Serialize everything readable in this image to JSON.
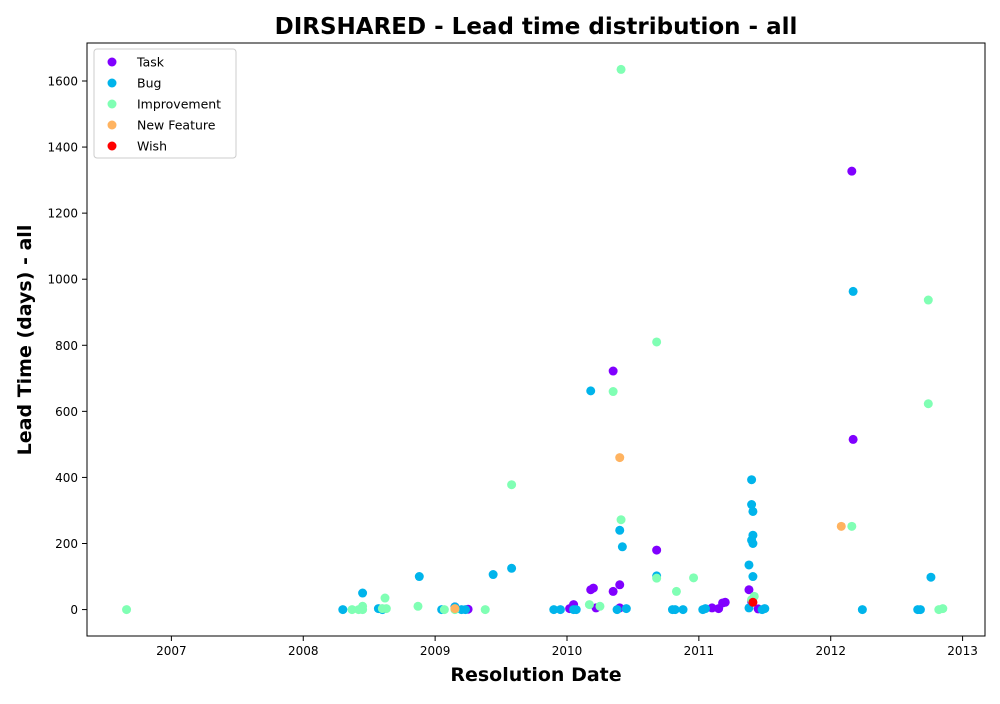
{
  "chart_data": {
    "type": "scatter",
    "title": "DIRSHARED - Lead time distribution - all",
    "xlabel": "Resolution Date",
    "ylabel": "Lead Time (days) - all",
    "xlim": [
      2006.36,
      2013.17
    ],
    "ylim": [
      -80,
      1715
    ],
    "x_ticks": [
      2007,
      2008,
      2009,
      2010,
      2011,
      2012,
      2013
    ],
    "y_ticks": [
      0,
      200,
      400,
      600,
      800,
      1000,
      1200,
      1400,
      1600
    ],
    "grid": false,
    "legend_position": "top-left",
    "series": [
      {
        "name": "Task",
        "color": "#8000ff",
        "points": [
          [
            2008.6,
            2
          ],
          [
            2009.15,
            8
          ],
          [
            2009.25,
            1
          ],
          [
            2010.02,
            3
          ],
          [
            2010.05,
            15
          ],
          [
            2010.18,
            60
          ],
          [
            2010.2,
            65
          ],
          [
            2010.22,
            5
          ],
          [
            2010.35,
            722
          ],
          [
            2010.35,
            55
          ],
          [
            2010.4,
            75
          ],
          [
            2010.4,
            5
          ],
          [
            2010.68,
            180
          ],
          [
            2011.1,
            5
          ],
          [
            2011.15,
            3
          ],
          [
            2011.18,
            20
          ],
          [
            2011.2,
            22
          ],
          [
            2011.38,
            60
          ],
          [
            2011.4,
            25
          ],
          [
            2011.45,
            2
          ],
          [
            2012.16,
            1327
          ],
          [
            2012.17,
            515
          ]
        ]
      },
      {
        "name": "Bug",
        "color": "#00b4eb",
        "points": [
          [
            2008.3,
            0
          ],
          [
            2008.45,
            50
          ],
          [
            2008.57,
            3
          ],
          [
            2008.6,
            0
          ],
          [
            2008.88,
            100
          ],
          [
            2009.05,
            0
          ],
          [
            2009.15,
            8
          ],
          [
            2009.2,
            0
          ],
          [
            2009.23,
            0
          ],
          [
            2009.44,
            106
          ],
          [
            2009.58,
            125
          ],
          [
            2009.9,
            0
          ],
          [
            2009.95,
            0
          ],
          [
            2010.05,
            0
          ],
          [
            2010.07,
            0
          ],
          [
            2010.18,
            662
          ],
          [
            2010.38,
            0
          ],
          [
            2010.4,
            240
          ],
          [
            2010.42,
            190
          ],
          [
            2010.45,
            3
          ],
          [
            2010.68,
            102
          ],
          [
            2010.8,
            0
          ],
          [
            2010.82,
            0
          ],
          [
            2010.88,
            0
          ],
          [
            2011.03,
            0
          ],
          [
            2011.05,
            3
          ],
          [
            2011.38,
            5
          ],
          [
            2011.38,
            135
          ],
          [
            2011.4,
            393
          ],
          [
            2011.4,
            318
          ],
          [
            2011.41,
            297
          ],
          [
            2011.41,
            225
          ],
          [
            2011.4,
            210
          ],
          [
            2011.41,
            200
          ],
          [
            2011.41,
            100
          ],
          [
            2011.48,
            0
          ],
          [
            2011.5,
            3
          ],
          [
            2012.17,
            963
          ],
          [
            2012.24,
            0
          ],
          [
            2012.66,
            0
          ],
          [
            2012.68,
            0
          ],
          [
            2012.76,
            98
          ]
        ]
      },
      {
        "name": "Improvement",
        "color": "#80ffb4",
        "points": [
          [
            2006.66,
            0
          ],
          [
            2008.37,
            0
          ],
          [
            2008.42,
            0
          ],
          [
            2008.45,
            10
          ],
          [
            2008.45,
            0
          ],
          [
            2008.6,
            3
          ],
          [
            2008.62,
            35
          ],
          [
            2008.63,
            3
          ],
          [
            2008.87,
            10
          ],
          [
            2009.07,
            0
          ],
          [
            2009.15,
            0
          ],
          [
            2009.38,
            0
          ],
          [
            2009.58,
            378
          ],
          [
            2010.17,
            15
          ],
          [
            2010.25,
            10
          ],
          [
            2010.35,
            660
          ],
          [
            2010.41,
            1635
          ],
          [
            2010.41,
            272
          ],
          [
            2010.68,
            810
          ],
          [
            2010.68,
            95
          ],
          [
            2010.83,
            55
          ],
          [
            2010.96,
            96
          ],
          [
            2011.4,
            30
          ],
          [
            2011.42,
            40
          ],
          [
            2012.16,
            252
          ],
          [
            2012.74,
            937
          ],
          [
            2012.74,
            623
          ],
          [
            2012.82,
            0
          ],
          [
            2012.85,
            3
          ]
        ]
      },
      {
        "name": "New Feature",
        "color": "#ffb360",
        "points": [
          [
            2009.15,
            3
          ],
          [
            2010.4,
            460
          ],
          [
            2012.08,
            252
          ]
        ]
      },
      {
        "name": "Wish",
        "color": "#ff0000",
        "points": [
          [
            2011.41,
            22
          ]
        ]
      }
    ]
  }
}
